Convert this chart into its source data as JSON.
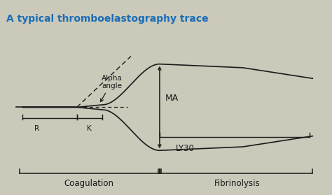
{
  "title": "A typical thromboelastography trace",
  "title_color": "#1a6db5",
  "bg_color": "#cac9ba",
  "line_color": "#1a1a1a",
  "R_label": "R",
  "K_label": "K",
  "MA_label": "MA",
  "LY30_label": "LY30",
  "alpha_label": "Alpha\nangle",
  "coag_label": "Coagulation",
  "fibrin_label": "Fibrinolysis",
  "xlim": [
    0,
    10
  ],
  "ylim": [
    -1.3,
    1.3
  ],
  "figsize": [
    4.74,
    2.79
  ],
  "dpi": 100
}
